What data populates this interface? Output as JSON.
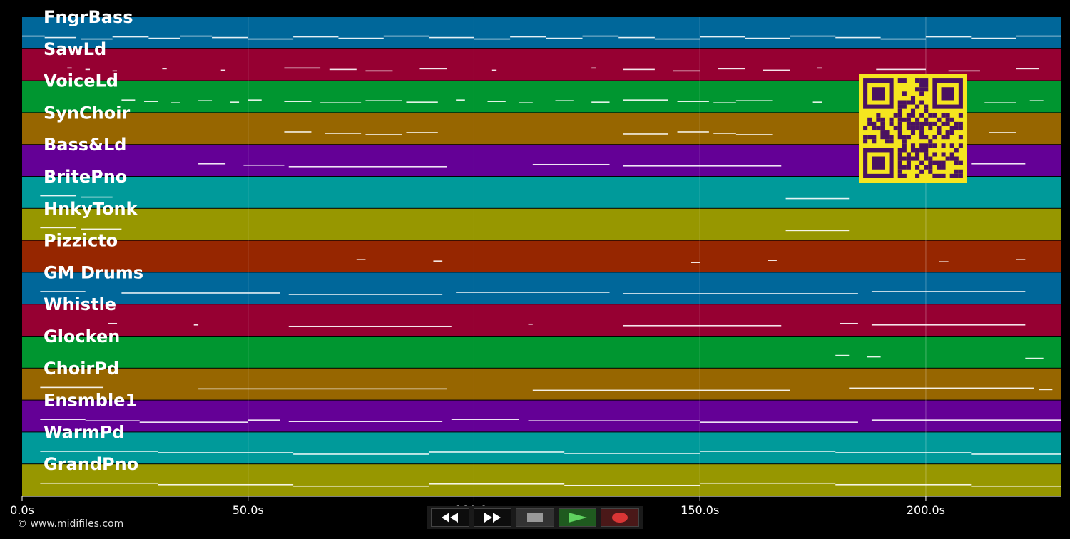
{
  "app": {
    "copyright": "© www.midifiles.com",
    "colors": {
      "background": "#000000",
      "track_palette": [
        "#00679a",
        "#960032",
        "#009630",
        "#976600",
        "#640096",
        "#009a9a",
        "#979700",
        "#962600"
      ],
      "note": "#ffffff",
      "qr": "#f5e51f",
      "qr_dark": "#4a1261"
    }
  },
  "tracks": [
    {
      "name": "FngrBass",
      "color": "#00679a"
    },
    {
      "name": "SawLd",
      "color": "#960032"
    },
    {
      "name": "VoiceLd",
      "color": "#009630"
    },
    {
      "name": "SynChoir",
      "color": "#976600"
    },
    {
      "name": "Bass&Ld",
      "color": "#640096"
    },
    {
      "name": "BritePno",
      "color": "#009a9a"
    },
    {
      "name": "HnkyTonk",
      "color": "#979700"
    },
    {
      "name": "Pizzicto",
      "color": "#962600"
    },
    {
      "name": "GM Drums",
      "color": "#00679a"
    },
    {
      "name": "Whistle",
      "color": "#960032"
    },
    {
      "name": "Glocken",
      "color": "#009630"
    },
    {
      "name": "ChoirPd",
      "color": "#976600"
    },
    {
      "name": "Ensmble1",
      "color": "#640096"
    },
    {
      "name": "WarmPd",
      "color": "#009a9a"
    },
    {
      "name": "GrandPno",
      "color": "#979700"
    }
  ],
  "timeline": {
    "unit": "s",
    "max": 230,
    "ticks": [
      {
        "value": 0,
        "label": "0.0s"
      },
      {
        "value": 50,
        "label": "50.0s"
      },
      {
        "value": 100,
        "label": "100.0s"
      },
      {
        "value": 150,
        "label": "150.0s"
      },
      {
        "value": 200,
        "label": "200.0s"
      }
    ]
  },
  "transport": {
    "buttons": [
      {
        "name": "rewind-button",
        "icon": "rewind-icon"
      },
      {
        "name": "fast-forward-button",
        "icon": "fast-forward-icon"
      },
      {
        "name": "stop-button",
        "icon": "stop-icon"
      },
      {
        "name": "play-button",
        "icon": "play-icon"
      },
      {
        "name": "record-button",
        "icon": "record-icon"
      }
    ]
  },
  "qr": {
    "icon": "qr-code-icon"
  },
  "notes": [
    [
      [
        0,
        5
      ],
      [
        5,
        12
      ],
      [
        13,
        20
      ],
      [
        20,
        28
      ],
      [
        28,
        35
      ],
      [
        35,
        42
      ],
      [
        42,
        50
      ],
      [
        50,
        60
      ],
      [
        60,
        70
      ],
      [
        70,
        80
      ],
      [
        80,
        90
      ],
      [
        90,
        100
      ],
      [
        100,
        108
      ],
      [
        108,
        116
      ],
      [
        116,
        124
      ],
      [
        124,
        132
      ],
      [
        132,
        140
      ],
      [
        140,
        150
      ],
      [
        150,
        160
      ],
      [
        160,
        170
      ],
      [
        170,
        180
      ],
      [
        180,
        190
      ],
      [
        190,
        200
      ],
      [
        200,
        210
      ],
      [
        210,
        220
      ],
      [
        220,
        230
      ]
    ],
    [
      [
        10,
        11
      ],
      [
        14,
        15
      ],
      [
        20,
        21
      ],
      [
        31,
        32
      ],
      [
        44,
        45
      ],
      [
        58,
        66
      ],
      [
        68,
        74
      ],
      [
        76,
        82
      ],
      [
        88,
        94
      ],
      [
        104,
        105
      ],
      [
        126,
        127
      ],
      [
        133,
        140
      ],
      [
        144,
        150
      ],
      [
        154,
        160
      ],
      [
        164,
        170
      ],
      [
        176,
        177
      ],
      [
        189,
        200
      ],
      [
        205,
        212
      ],
      [
        220,
        225
      ]
    ],
    [
      [
        22,
        25
      ],
      [
        27,
        30
      ],
      [
        33,
        35
      ],
      [
        39,
        42
      ],
      [
        46,
        48
      ],
      [
        50,
        53
      ],
      [
        58,
        64
      ],
      [
        66,
        75
      ],
      [
        76,
        84
      ],
      [
        85,
        92
      ],
      [
        96,
        98
      ],
      [
        103,
        107
      ],
      [
        110,
        113
      ],
      [
        118,
        122
      ],
      [
        126,
        130
      ],
      [
        133,
        143
      ],
      [
        145,
        152
      ],
      [
        153,
        158
      ],
      [
        158,
        166
      ],
      [
        175,
        177
      ],
      [
        186,
        190
      ],
      [
        200,
        206
      ],
      [
        213,
        220
      ],
      [
        223,
        226
      ]
    ],
    [
      [
        58,
        64
      ],
      [
        67,
        75
      ],
      [
        76,
        84
      ],
      [
        85,
        92
      ],
      [
        133,
        143
      ],
      [
        145,
        152
      ],
      [
        153,
        158
      ],
      [
        158,
        166
      ],
      [
        214,
        220
      ]
    ],
    [
      [
        39,
        45
      ],
      [
        49,
        58
      ],
      [
        59,
        94
      ],
      [
        113,
        130
      ],
      [
        133,
        168
      ],
      [
        210,
        222
      ]
    ],
    [
      [
        4,
        12
      ],
      [
        13,
        20
      ],
      [
        169,
        183
      ]
    ],
    [
      [
        4,
        12
      ],
      [
        13,
        22
      ],
      [
        169,
        183
      ]
    ],
    [
      [
        74,
        76
      ],
      [
        91,
        93
      ],
      [
        148,
        150
      ],
      [
        165,
        167
      ],
      [
        203,
        205
      ],
      [
        220,
        222
      ]
    ],
    [
      [
        4,
        14
      ],
      [
        22,
        57
      ],
      [
        59,
        93
      ],
      [
        96,
        130
      ],
      [
        133,
        185
      ],
      [
        188,
        222
      ]
    ],
    [
      [
        19,
        21
      ],
      [
        38,
        39
      ],
      [
        59,
        95
      ],
      [
        112,
        113
      ],
      [
        133,
        168
      ],
      [
        181,
        185
      ],
      [
        188,
        222
      ]
    ],
    [
      [
        180,
        183
      ],
      [
        187,
        190
      ],
      [
        222,
        226
      ]
    ],
    [
      [
        4,
        18
      ],
      [
        39,
        94
      ],
      [
        113,
        170
      ],
      [
        183,
        224
      ],
      [
        225,
        228
      ]
    ],
    [
      [
        4,
        14
      ],
      [
        14,
        26
      ],
      [
        26,
        50
      ],
      [
        50,
        57
      ],
      [
        59,
        93
      ],
      [
        95,
        110
      ],
      [
        112,
        150
      ],
      [
        150,
        185
      ],
      [
        188,
        230
      ]
    ],
    [
      [
        4,
        30
      ],
      [
        30,
        60
      ],
      [
        60,
        90
      ],
      [
        90,
        120
      ],
      [
        120,
        150
      ],
      [
        150,
        180
      ],
      [
        180,
        210
      ],
      [
        210,
        230
      ]
    ],
    [
      [
        4,
        30
      ],
      [
        30,
        60
      ],
      [
        60,
        90
      ],
      [
        90,
        120
      ],
      [
        120,
        150
      ],
      [
        150,
        180
      ],
      [
        180,
        210
      ],
      [
        210,
        230
      ]
    ]
  ]
}
